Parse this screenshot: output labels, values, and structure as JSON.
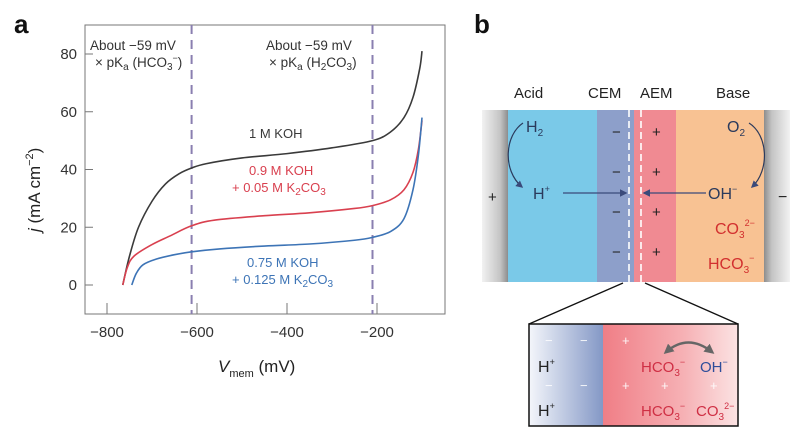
{
  "panels": {
    "a": {
      "letter": "a"
    },
    "b": {
      "letter": "b"
    }
  },
  "chart_data": [
    {
      "type": "line",
      "panel": "a",
      "title": "",
      "xlabel": "V_mem (mV)",
      "xlabel_main": "V",
      "xlabel_sub": "mem",
      "xlabel_unit": " (mV)",
      "ylabel": "j (mA cm^-2)",
      "ylabel_main": "j",
      "ylabel_unit": " (mA cm",
      "ylabel_exp": "−2",
      "ylabel_close": ")",
      "xlim": [
        -850,
        -95
      ],
      "ylim": [
        -5,
        90
      ],
      "xticks": [
        -800,
        -600,
        -400,
        -200
      ],
      "xtick_labels": [
        "−800",
        "−600",
        "−400",
        "−200"
      ],
      "yticks": [
        0,
        20,
        40,
        60,
        80
      ],
      "ytick_labels": [
        "0",
        "20",
        "40",
        "60",
        "80"
      ],
      "grid": false,
      "vlines": [
        {
          "x": -612,
          "label_line1": "About −59 mV",
          "label_line2_prefix": "× pK",
          "label_line2_sub": "a",
          "label_line2_species": " (HCO",
          "label_line2_species_sub": "3",
          "label_line2_species_sup": "−",
          "label_line2_close": ")"
        },
        {
          "x": -210,
          "label_line1": "About −59 mV",
          "label_line2_prefix": "× pK",
          "label_line2_sub": "a",
          "label_line2_species": " (H",
          "label_line2_species_sub": "2",
          "label_line2_species_mid": "CO",
          "label_line2_species_sub2": "3",
          "label_line2_close": ")"
        }
      ],
      "series": [
        {
          "name": "1 M KOH",
          "color": "#3a3a3a",
          "label_line1": "1 M KOH",
          "x": [
            -765,
            -750,
            -730,
            -700,
            -670,
            -640,
            -612,
            -580,
            -500,
            -400,
            -300,
            -210,
            -170,
            -140,
            -120,
            -105,
            -100
          ],
          "y": [
            0,
            10,
            20,
            29,
            35,
            38.5,
            40.5,
            42,
            44,
            45.5,
            47.5,
            50,
            53,
            58,
            65,
            75,
            81
          ]
        },
        {
          "name": "0.9 M KOH + 0.05 M K2CO3",
          "color": "#d9404f",
          "label_line1": "0.9 M KOH",
          "label_line2_prefix": "+ 0.05 M K",
          "label_line2_sub": "2",
          "label_line2_mid": "CO",
          "label_line2_sub2": "3",
          "x": [
            -765,
            -755,
            -740,
            -700,
            -660,
            -612,
            -560,
            -450,
            -350,
            -250,
            -210,
            -170,
            -140,
            -120,
            -108,
            -100
          ],
          "y": [
            0,
            6,
            10,
            14,
            17,
            20.5,
            22.5,
            24,
            25,
            26.5,
            27.5,
            29.5,
            33,
            39,
            47,
            57
          ]
        },
        {
          "name": "0.75 M KOH + 0.125 M K2CO3",
          "color": "#3d74b6",
          "label_line1": "0.75 M KOH",
          "label_line2_prefix": "+ 0.125 M K",
          "label_line2_sub": "2",
          "label_line2_mid": "CO",
          "label_line2_sub2": "3",
          "x": [
            -745,
            -735,
            -720,
            -690,
            -650,
            -612,
            -550,
            -450,
            -350,
            -250,
            -210,
            -170,
            -140,
            -120,
            -108,
            -100
          ],
          "y": [
            0,
            4,
            7,
            9,
            10.5,
            11.5,
            12.5,
            13.5,
            14.2,
            15.5,
            16.5,
            18.5,
            23,
            33,
            45,
            58
          ]
        }
      ]
    }
  ],
  "schematic": {
    "regions": [
      {
        "name": "Acid",
        "color": "#7ac9e8"
      },
      {
        "name": "CEM",
        "color": "#8d9fca"
      },
      {
        "name": "AEM",
        "color": "#f08a92"
      },
      {
        "name": "Base",
        "color": "#f8c293"
      }
    ],
    "headers": {
      "acid": "Acid",
      "cem": "CEM",
      "aem": "AEM",
      "base": "Base"
    },
    "left_electrode_sign": "+",
    "right_electrode_sign": "−",
    "cem_charges": [
      "−",
      "−",
      "−",
      "−"
    ],
    "aem_charges": [
      "+",
      "+",
      "+",
      "+"
    ],
    "acid_species": {
      "h2_main": "H",
      "h2_sub": "2",
      "hplus_main": "H",
      "hplus_sup": "+"
    },
    "base_species": {
      "o2_main": "O",
      "o2_sub": "2",
      "oh_main": "OH",
      "oh_sup": "−",
      "co3_main": "CO",
      "co3_sub": "3",
      "co3_sup": "2−",
      "hco3_main": "HCO",
      "hco3_sub": "3",
      "hco3_sup": "−"
    },
    "inset": {
      "left_species": [
        {
          "main": "H",
          "sup": "+"
        },
        {
          "main": "H",
          "sup": "+"
        }
      ],
      "cem_marks": [
        "−",
        "−",
        "−",
        "−"
      ],
      "aem_marks": [
        "+",
        "+",
        "+",
        "+",
        "+"
      ],
      "row1": {
        "hco3_main": "HCO",
        "hco3_sub": "3",
        "hco3_sup": "−",
        "oh_main": "OH",
        "oh_sup": "−"
      },
      "row2": {
        "hco3_main": "HCO",
        "hco3_sub": "3",
        "hco3_sup": "−",
        "co3_main": "CO",
        "co3_sub": "3",
        "co3_sup": "2−"
      }
    },
    "colors": {
      "electrode": "#b9b9b9",
      "ion_dark": "#2b3a5c",
      "ion_red": "#d2302f",
      "inset_red": "#cf2f44",
      "inset_blue": "#2e4d9a",
      "arrow": "#3a4a7a"
    }
  }
}
